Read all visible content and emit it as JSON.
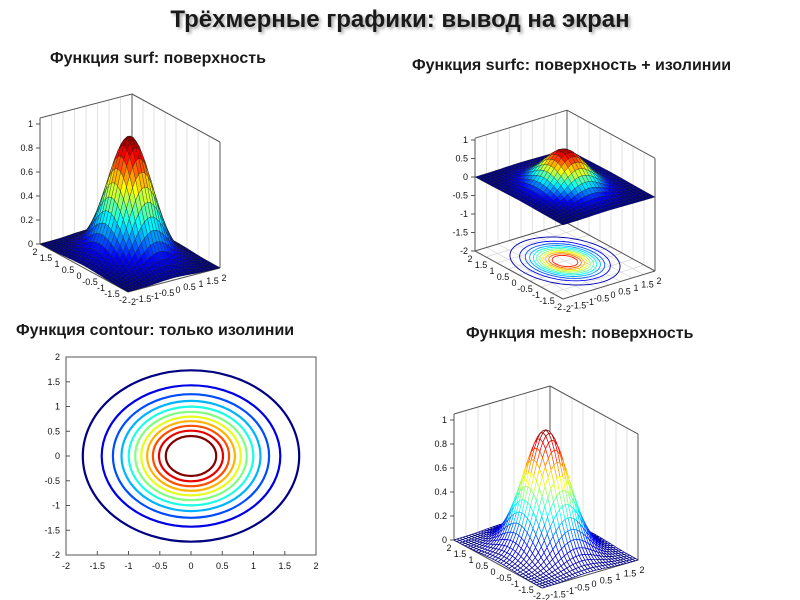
{
  "title": "Трёхмерные графики: вывод на экран",
  "panels": [
    {
      "id": "surf",
      "caption": "Функция surf: поверхность"
    },
    {
      "id": "surfc",
      "caption": "Функция surfc: поверхность + изолинии"
    },
    {
      "id": "contour",
      "caption": "Функция contour: только изолинии"
    },
    {
      "id": "mesh",
      "caption": "Функция mesh: поверхность"
    }
  ],
  "chart_data": [
    {
      "type": "surface",
      "function": "exp(-(x^2+y^2))",
      "x_ticks": [
        "-2",
        "-1.5",
        "-1",
        "-0.5",
        "0",
        "0.5",
        "1",
        "1.5",
        "2"
      ],
      "y_ticks": [
        "-2",
        "-1.5",
        "-1",
        "-0.5",
        "0",
        "0.5",
        "1",
        "1.5",
        "2"
      ],
      "z_ticks": [
        "0",
        "0.2",
        "0.4",
        "0.6",
        "0.8",
        "1"
      ],
      "zlim": [
        0,
        1
      ]
    },
    {
      "type": "surface+contour",
      "function": "exp(-(x^2+y^2))",
      "x_ticks": [
        "-2",
        "-1.5",
        "-1",
        "-0.5",
        "0",
        "0.5",
        "1",
        "1.5",
        "2"
      ],
      "y_ticks": [
        "-2",
        "-1.5",
        "-1",
        "-0.5",
        "0",
        "0.5",
        "1",
        "1.5",
        "2"
      ],
      "z_ticks": [
        "-2",
        "-1.5",
        "-1",
        "-0.5",
        "0",
        "0.5",
        "1"
      ],
      "zlim": [
        -2,
        1
      ]
    },
    {
      "type": "contour",
      "function": "exp(-(x^2+y^2))",
      "x_ticks": [
        "-2",
        "-1.5",
        "-1",
        "-0.5",
        "0",
        "0.5",
        "1",
        "1.5",
        "2"
      ],
      "y_ticks": [
        "2",
        "1.5",
        "1",
        "0.5",
        "0",
        "-0.5",
        "-1",
        "-1.5",
        "-2"
      ],
      "xlim": [
        -2,
        2
      ],
      "ylim": [
        -2,
        2
      ],
      "levels": [
        0.05,
        0.13,
        0.21,
        0.29,
        0.37,
        0.45,
        0.53,
        0.61,
        0.69,
        0.77,
        0.85
      ]
    },
    {
      "type": "mesh",
      "function": "exp(-(x^2+y^2))",
      "x_ticks": [
        "-2",
        "-1.5",
        "-1",
        "-0.5",
        "0",
        "0.5",
        "1",
        "1.5",
        "2"
      ],
      "y_ticks": [
        "-2",
        "-1.5",
        "-1",
        "-0.5",
        "0",
        "0.5",
        "1",
        "1.5",
        "2"
      ],
      "z_ticks": [
        "0",
        "0.2",
        "0.4",
        "0.6",
        "0.8",
        "1"
      ],
      "zlim": [
        0,
        1
      ]
    }
  ]
}
